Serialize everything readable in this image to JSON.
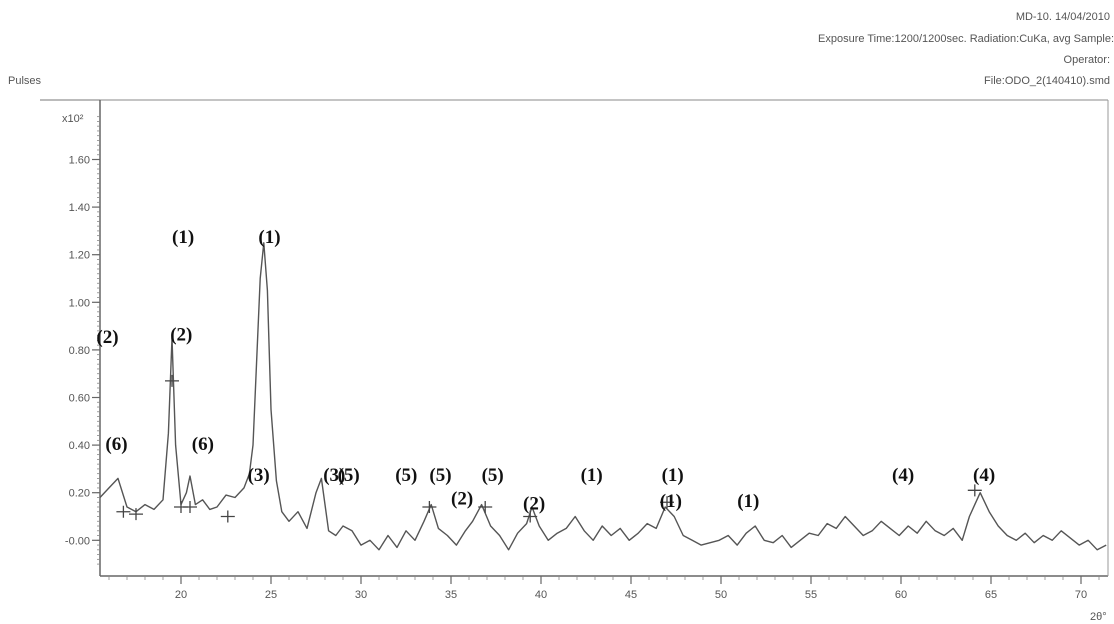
{
  "header": {
    "line1": "MD-10.  14/04/2010",
    "line2": "Exposure Time:1200/1200sec.  Radiation:CuKa, avg   Sample:",
    "line3": "Operator:",
    "line4": "File:ODO_2(140410).smd"
  },
  "chart_data": {
    "type": "line",
    "ylabel": "Pulses",
    "y_multiplier": "x10²",
    "xlabel": "2θ°",
    "xlim": [
      15.5,
      71.5
    ],
    "ylim": [
      -0.15,
      1.85
    ],
    "x_ticks": [
      20,
      25,
      30,
      35,
      40,
      45,
      50,
      55,
      60,
      65,
      70
    ],
    "y_ticks": [
      -0.0,
      0.2,
      0.4,
      0.6,
      0.8,
      1.0,
      1.2,
      1.4,
      1.6
    ],
    "y_tick_labels": [
      "-0.00",
      "0.20",
      "0.40",
      "0.60",
      "0.80",
      "1.00",
      "1.20",
      "1.40",
      "1.60"
    ],
    "series": [
      {
        "x": [
          15.5,
          16.0,
          16.5,
          17.0,
          17.5,
          18.0,
          18.5,
          19.0,
          19.3,
          19.5,
          19.7,
          20.0,
          20.3,
          20.5,
          20.8,
          21.2,
          21.6,
          22.0,
          22.5,
          23.0,
          23.5,
          23.8,
          24.0,
          24.2,
          24.4,
          24.6,
          24.8,
          25.0,
          25.3,
          25.6,
          26.0,
          26.5,
          27.0,
          27.5,
          27.8,
          28.2,
          28.6,
          29.0,
          29.5,
          30.0,
          30.5,
          31.0,
          31.5,
          32.0,
          32.5,
          33.0,
          33.5,
          33.9,
          34.3,
          34.8,
          35.3,
          35.8,
          36.2,
          36.7,
          37.2,
          37.7,
          38.2,
          38.7,
          39.2,
          39.5,
          39.9,
          40.4,
          40.9,
          41.4,
          41.9,
          42.4,
          42.9,
          43.4,
          43.9,
          44.4,
          44.9,
          45.4,
          45.9,
          46.4,
          46.9,
          47.4,
          47.9,
          48.4,
          48.9,
          49.4,
          49.9,
          50.4,
          50.9,
          51.4,
          51.9,
          52.4,
          52.9,
          53.4,
          53.9,
          54.4,
          54.9,
          55.4,
          55.9,
          56.4,
          56.9,
          57.4,
          57.9,
          58.4,
          58.9,
          59.4,
          59.9,
          60.4,
          60.9,
          61.4,
          61.9,
          62.4,
          62.9,
          63.4,
          63.8,
          64.1,
          64.4,
          64.9,
          65.4,
          65.9,
          66.4,
          66.9,
          67.4,
          67.9,
          68.4,
          68.9,
          69.4,
          69.9,
          70.4,
          70.9,
          71.4
        ],
        "y": [
          0.18,
          0.22,
          0.26,
          0.14,
          0.12,
          0.15,
          0.13,
          0.17,
          0.45,
          0.85,
          0.4,
          0.15,
          0.2,
          0.27,
          0.15,
          0.17,
          0.13,
          0.14,
          0.19,
          0.18,
          0.22,
          0.28,
          0.4,
          0.75,
          1.1,
          1.25,
          1.05,
          0.55,
          0.25,
          0.12,
          0.08,
          0.12,
          0.05,
          0.2,
          0.26,
          0.04,
          0.02,
          0.06,
          0.04,
          -0.02,
          0.0,
          -0.04,
          0.02,
          -0.03,
          0.04,
          0.0,
          0.08,
          0.15,
          0.05,
          0.02,
          -0.02,
          0.04,
          0.08,
          0.15,
          0.06,
          0.02,
          -0.04,
          0.03,
          0.07,
          0.14,
          0.06,
          0.0,
          0.03,
          0.05,
          0.1,
          0.04,
          0.0,
          0.06,
          0.02,
          0.05,
          0.0,
          0.03,
          0.07,
          0.05,
          0.14,
          0.1,
          0.02,
          0.0,
          -0.02,
          -0.01,
          0.0,
          0.02,
          -0.02,
          0.03,
          0.06,
          0.0,
          -0.01,
          0.02,
          -0.03,
          0.0,
          0.03,
          0.02,
          0.07,
          0.05,
          0.1,
          0.06,
          0.02,
          0.04,
          0.08,
          0.05,
          0.02,
          0.06,
          0.03,
          0.08,
          0.04,
          0.02,
          0.05,
          0.0,
          0.1,
          0.15,
          0.2,
          0.12,
          0.06,
          0.02,
          0.0,
          0.03,
          -0.01,
          0.02,
          0.0,
          0.04,
          0.01,
          -0.02,
          0.0,
          -0.04,
          -0.02
        ]
      }
    ],
    "markers": [
      {
        "x": 16.8,
        "y": 0.12
      },
      {
        "x": 17.5,
        "y": 0.11
      },
      {
        "x": 19.5,
        "y": 0.67
      },
      {
        "x": 20.0,
        "y": 0.14
      },
      {
        "x": 20.5,
        "y": 0.14
      },
      {
        "x": 22.6,
        "y": 0.1
      },
      {
        "x": 33.8,
        "y": 0.14
      },
      {
        "x": 36.9,
        "y": 0.14
      },
      {
        "x": 39.4,
        "y": 0.1
      },
      {
        "x": 47.0,
        "y": 0.16
      },
      {
        "x": 64.1,
        "y": 0.21
      }
    ],
    "annotations": [
      {
        "text": "(6)",
        "x": 15.8,
        "y": 0.38
      },
      {
        "text": "(2)",
        "x": 15.3,
        "y": 0.83
      },
      {
        "text": "(2)",
        "x": 19.4,
        "y": 0.84
      },
      {
        "text": "(1)",
        "x": 19.5,
        "y": 1.25
      },
      {
        "text": "(1)",
        "x": 24.3,
        "y": 1.25
      },
      {
        "text": "(6)",
        "x": 20.6,
        "y": 0.38
      },
      {
        "text": "(3)",
        "x": 23.7,
        "y": 0.25
      },
      {
        "text": "(3)",
        "x": 27.9,
        "y": 0.25
      },
      {
        "text": "(5)",
        "x": 28.7,
        "y": 0.25
      },
      {
        "text": "(5)",
        "x": 31.9,
        "y": 0.25
      },
      {
        "text": "(5)",
        "x": 33.8,
        "y": 0.25
      },
      {
        "text": "(5)",
        "x": 36.7,
        "y": 0.25
      },
      {
        "text": "(2)",
        "x": 35.0,
        "y": 0.15
      },
      {
        "text": "(2)",
        "x": 39.0,
        "y": 0.13
      },
      {
        "text": "(1)",
        "x": 42.2,
        "y": 0.25
      },
      {
        "text": "(1)",
        "x": 46.7,
        "y": 0.25
      },
      {
        "text": "(1)",
        "x": 46.6,
        "y": 0.14
      },
      {
        "text": "(1)",
        "x": 50.9,
        "y": 0.14
      },
      {
        "text": "(4)",
        "x": 59.5,
        "y": 0.25
      },
      {
        "text": "(4)",
        "x": 64.0,
        "y": 0.25
      }
    ]
  }
}
